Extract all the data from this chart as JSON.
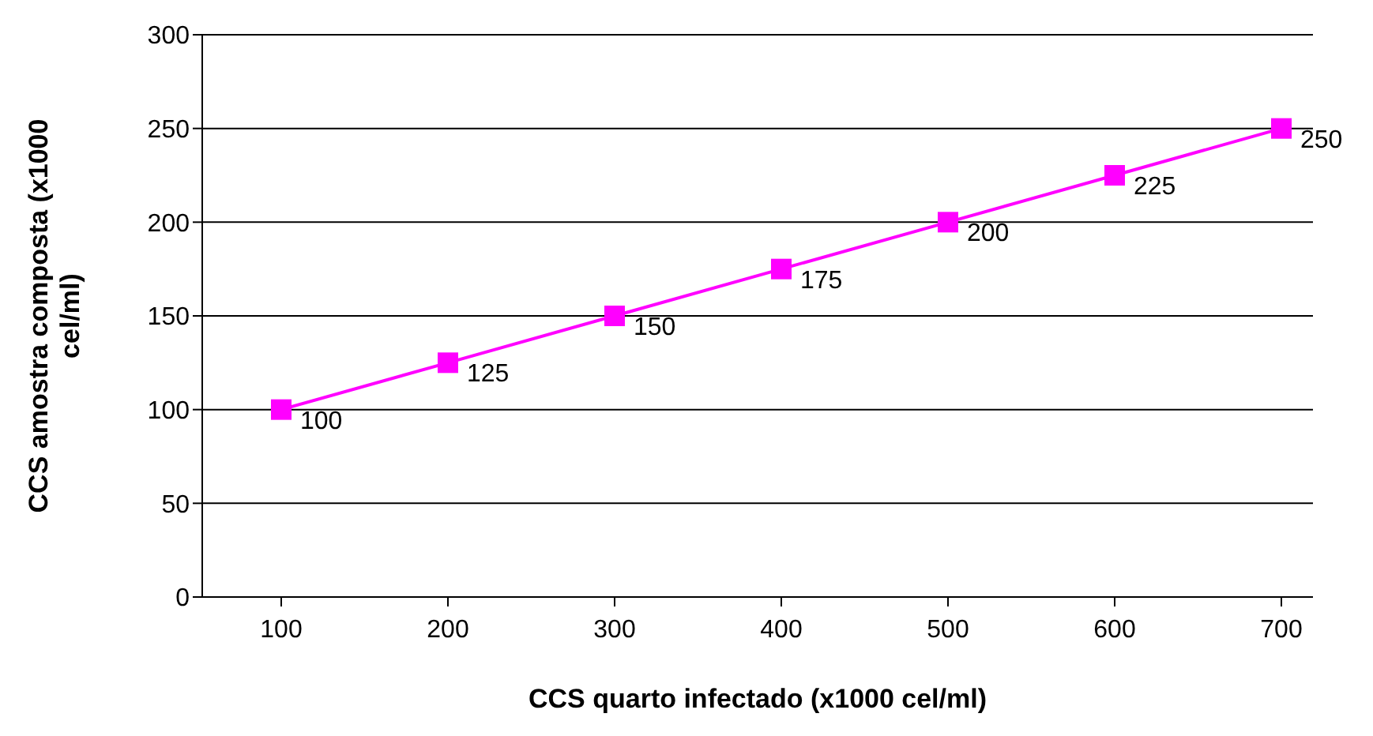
{
  "chart_data": {
    "type": "line",
    "xlabel": "CCS quarto infectado (x1000 cel/ml)",
    "ylabel": "CCS amostra composta (x1000 cel/ml)",
    "categories": [
      "100",
      "200",
      "300",
      "400",
      "500",
      "600",
      "700"
    ],
    "series": [
      {
        "color": "#ff00ff",
        "values": [
          100,
          125,
          150,
          175,
          200,
          225,
          250
        ]
      }
    ],
    "ylim": [
      0,
      300
    ],
    "yticks": [
      0,
      50,
      100,
      150,
      200,
      250,
      300
    ],
    "grid": "y",
    "marker": "square",
    "line_style": "solid",
    "data_labels": true,
    "legend": false
  }
}
